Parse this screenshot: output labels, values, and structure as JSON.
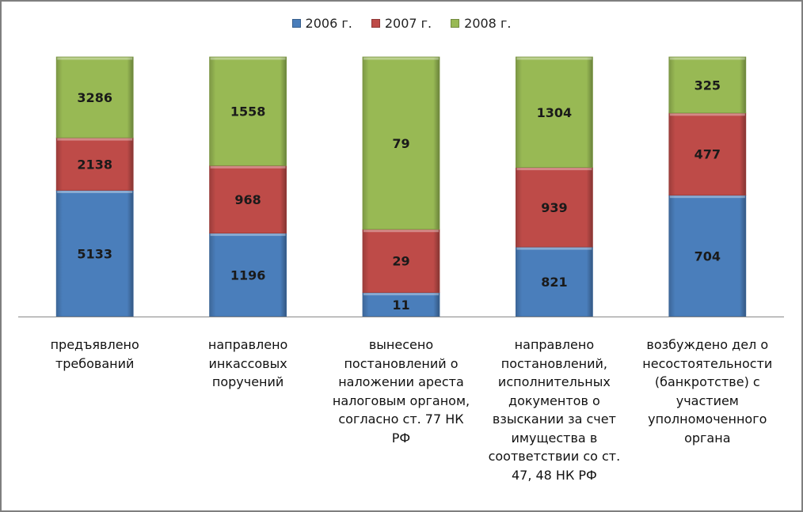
{
  "chart_data": {
    "type": "bar",
    "stacked": "percent",
    "title": "",
    "xlabel": "",
    "ylabel": "",
    "legend_position": "top",
    "grid": false,
    "categories": [
      "предъявлено требований",
      "направлено инкассовых поручений",
      "вынесено постановлений о наложении ареста налоговым органом, согласно ст. 77 НК РФ",
      "направлено постановлений, исполнительных документов о взыскании за счет имущества в соответствии со ст. 47, 48 НК РФ",
      "возбуждено дел о несостоятельности (банкротстве) с участием уполномоченного органа"
    ],
    "series": [
      {
        "name": "2006 г.",
        "color": "#4a7ebb",
        "values": [
          5133,
          1196,
          11,
          821,
          704
        ]
      },
      {
        "name": "2007 г.",
        "color": "#be4b48",
        "values": [
          2138,
          968,
          29,
          939,
          477
        ]
      },
      {
        "name": "2008 г.",
        "color": "#98b954",
        "values": [
          3286,
          1558,
          79,
          1304,
          325
        ]
      }
    ]
  }
}
